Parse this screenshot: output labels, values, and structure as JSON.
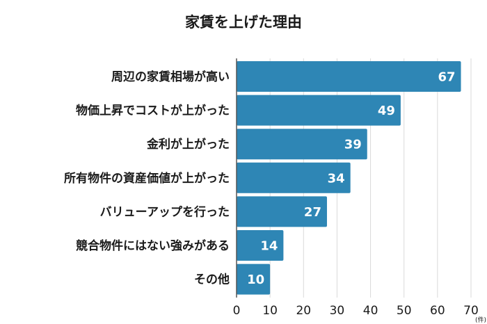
{
  "chart_data": {
    "type": "bar",
    "orientation": "horizontal",
    "title": "家賃を上げた理由",
    "categories": [
      "周辺の家賃相場が高い",
      "物価上昇でコストが上がった",
      "金利が上がった",
      "所有物件の資産価値が上がった",
      "バリューアップを行った",
      "競合物件にはない強みがある",
      "その他"
    ],
    "values": [
      67,
      49,
      39,
      34,
      27,
      14,
      10
    ],
    "xlim": [
      0,
      70
    ],
    "xticks": [
      0,
      10,
      20,
      30,
      40,
      50,
      60,
      70
    ],
    "unit": "(件)",
    "grid": true,
    "bar_color": "#2e86b5",
    "data_labels": true
  }
}
